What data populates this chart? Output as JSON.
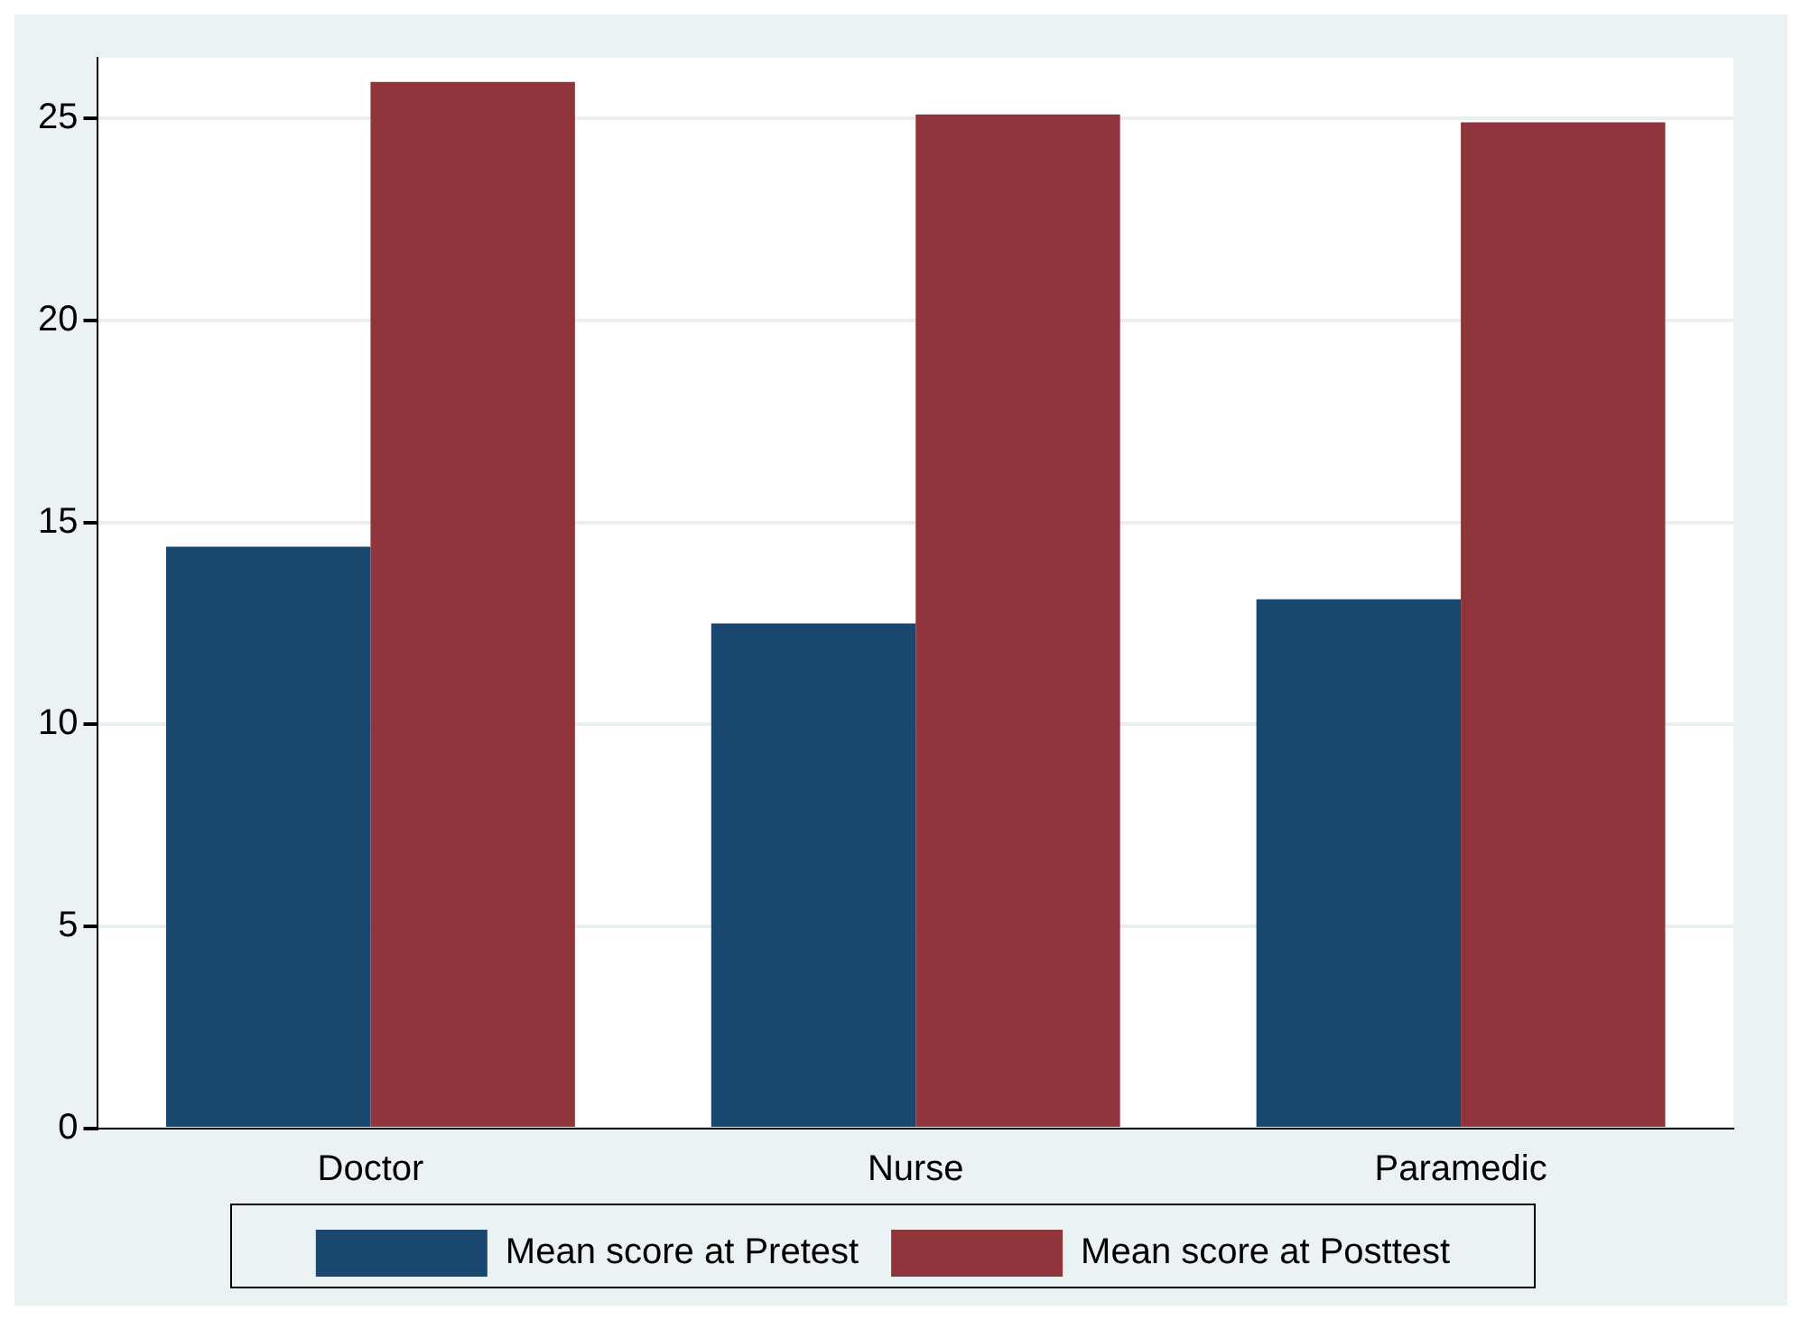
{
  "chart_data": {
    "type": "bar",
    "categories": [
      "Doctor",
      "Nurse",
      "Paramedic"
    ],
    "series": [
      {
        "name": "Mean score at Pretest",
        "color": "#1a476f",
        "values": [
          14.4,
          12.5,
          13.1
        ]
      },
      {
        "name": "Mean score at Posttest",
        "color": "#90353b",
        "values": [
          25.9,
          25.1,
          24.9
        ]
      }
    ],
    "ylim": [
      0,
      26.5
    ],
    "yticks": [
      0,
      5,
      10,
      15,
      20,
      25
    ],
    "grid": "y",
    "legend": "bottom"
  }
}
